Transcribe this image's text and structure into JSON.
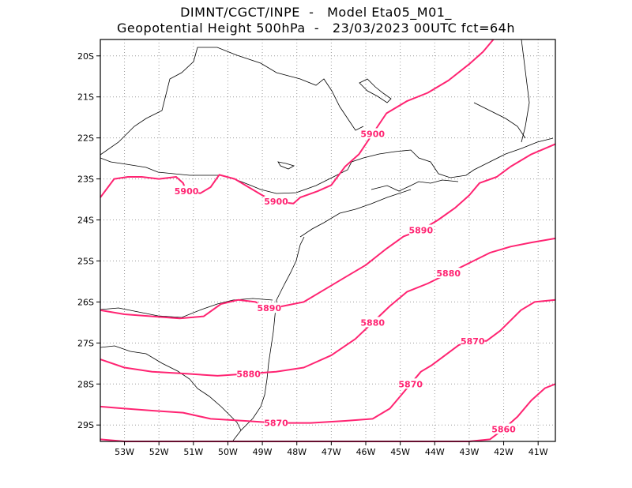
{
  "header": {
    "line1": "DIMNT/CGCT/INPE  -   Model Eta05_M01_",
    "line2": "Geopotential Height 500hPa  -   23/03/2023 00UTC fct=64h"
  },
  "colors": {
    "contour": "#ff2472",
    "coastline": "#000000",
    "grid": "#9a9a9a",
    "frame": "#000000"
  },
  "chart_data": {
    "type": "contour-map",
    "variable": "Geopotential Height 500hPa",
    "lon_range": [
      -53.7,
      -40.5
    ],
    "lat_range": [
      -29.4,
      -19.6
    ],
    "x_ticks": [
      "53W",
      "52W",
      "51W",
      "50W",
      "49W",
      "48W",
      "47W",
      "46W",
      "45W",
      "44W",
      "43W",
      "42W",
      "41W"
    ],
    "y_ticks": [
      "20S",
      "21S",
      "22S",
      "23S",
      "24S",
      "25S",
      "26S",
      "27S",
      "28S",
      "29S"
    ],
    "contours": [
      {
        "level": 5900,
        "labels": [
          "5900",
          "5900",
          "5900"
        ],
        "points": [
          [
            -53.7,
            -23.45
          ],
          [
            -53.3,
            -23.0
          ],
          [
            -52.9,
            -22.95
          ],
          [
            -52.5,
            -22.95
          ],
          [
            -52.0,
            -23.0
          ],
          [
            -51.5,
            -22.95
          ],
          [
            -51.3,
            -23.1
          ],
          [
            -51.2,
            -23.3
          ],
          [
            -50.8,
            -23.35
          ],
          [
            -50.5,
            -23.2
          ],
          [
            -50.25,
            -22.9
          ],
          [
            -49.8,
            -23.0
          ],
          [
            -49.4,
            -23.2
          ],
          [
            -49.0,
            -23.4
          ],
          [
            -48.6,
            -23.55
          ],
          [
            -48.1,
            -23.6
          ],
          [
            -47.9,
            -23.45
          ],
          [
            -47.4,
            -23.3
          ],
          [
            -47.0,
            -23.15
          ],
          [
            -46.6,
            -22.7
          ],
          [
            -46.2,
            -22.4
          ],
          [
            -45.8,
            -21.9
          ],
          [
            -45.4,
            -21.4
          ],
          [
            -44.8,
            -21.1
          ],
          [
            -44.2,
            -20.9
          ],
          [
            -43.6,
            -20.6
          ],
          [
            -43.0,
            -20.2
          ],
          [
            -42.6,
            -19.9
          ],
          [
            -42.3,
            -19.6
          ]
        ]
      },
      {
        "level": 5890,
        "labels": [
          "5890",
          "5890"
        ],
        "points": [
          [
            -53.7,
            -26.2
          ],
          [
            -53.0,
            -26.3
          ],
          [
            -52.2,
            -26.35
          ],
          [
            -51.4,
            -26.4
          ],
          [
            -50.7,
            -26.35
          ],
          [
            -50.2,
            -26.05
          ],
          [
            -49.7,
            -25.95
          ],
          [
            -49.2,
            -26.0
          ],
          [
            -48.8,
            -26.15
          ],
          [
            -48.4,
            -26.1
          ],
          [
            -47.8,
            -26.0
          ],
          [
            -47.2,
            -25.7
          ],
          [
            -46.6,
            -25.4
          ],
          [
            -46.0,
            -25.1
          ],
          [
            -45.4,
            -24.7
          ],
          [
            -44.9,
            -24.4
          ],
          [
            -44.4,
            -24.25
          ],
          [
            -43.9,
            -24.0
          ],
          [
            -43.4,
            -23.7
          ],
          [
            -43.0,
            -23.4
          ],
          [
            -42.7,
            -23.1
          ],
          [
            -42.2,
            -22.95
          ],
          [
            -41.8,
            -22.7
          ],
          [
            -41.2,
            -22.4
          ],
          [
            -40.5,
            -22.15
          ]
        ]
      },
      {
        "level": 5880,
        "labels": [
          "5880",
          "5880",
          "5880"
        ],
        "points": [
          [
            -53.7,
            -27.4
          ],
          [
            -53.0,
            -27.6
          ],
          [
            -52.2,
            -27.7
          ],
          [
            -51.2,
            -27.75
          ],
          [
            -50.3,
            -27.8
          ],
          [
            -49.4,
            -27.75
          ],
          [
            -48.6,
            -27.7
          ],
          [
            -47.8,
            -27.6
          ],
          [
            -47.0,
            -27.3
          ],
          [
            -46.3,
            -26.9
          ],
          [
            -45.8,
            -26.5
          ],
          [
            -45.3,
            -26.1
          ],
          [
            -44.8,
            -25.75
          ],
          [
            -44.2,
            -25.55
          ],
          [
            -43.6,
            -25.3
          ],
          [
            -43.0,
            -25.05
          ],
          [
            -42.4,
            -24.8
          ],
          [
            -41.8,
            -24.65
          ],
          [
            -41.2,
            -24.55
          ],
          [
            -40.5,
            -24.45
          ]
        ]
      },
      {
        "level": 5870,
        "labels": [
          "5870",
          "5870",
          "5870"
        ],
        "points": [
          [
            -53.7,
            -28.55
          ],
          [
            -53.0,
            -28.6
          ],
          [
            -52.2,
            -28.65
          ],
          [
            -51.3,
            -28.7
          ],
          [
            -50.5,
            -28.85
          ],
          [
            -49.5,
            -28.9
          ],
          [
            -48.6,
            -28.95
          ],
          [
            -47.6,
            -28.95
          ],
          [
            -46.6,
            -28.9
          ],
          [
            -45.8,
            -28.85
          ],
          [
            -45.3,
            -28.6
          ],
          [
            -45.0,
            -28.3
          ],
          [
            -44.7,
            -28.0
          ],
          [
            -44.4,
            -27.7
          ],
          [
            -44.1,
            -27.55
          ],
          [
            -43.7,
            -27.3
          ],
          [
            -43.3,
            -27.05
          ],
          [
            -42.9,
            -26.95
          ],
          [
            -42.5,
            -26.95
          ],
          [
            -42.1,
            -26.7
          ],
          [
            -41.8,
            -26.45
          ],
          [
            -41.5,
            -26.2
          ],
          [
            -41.1,
            -26.0
          ],
          [
            -40.5,
            -25.95
          ]
        ]
      },
      {
        "level": 5860,
        "labels": [
          "5860"
        ],
        "points": [
          [
            -53.7,
            -29.35
          ],
          [
            -53.0,
            -29.4
          ],
          [
            -43.0,
            -29.4
          ],
          [
            -42.4,
            -29.35
          ],
          [
            -42.0,
            -29.1
          ],
          [
            -41.6,
            -28.8
          ],
          [
            -41.2,
            -28.4
          ],
          [
            -40.8,
            -28.1
          ],
          [
            -40.5,
            -28.0
          ]
        ]
      }
    ]
  }
}
